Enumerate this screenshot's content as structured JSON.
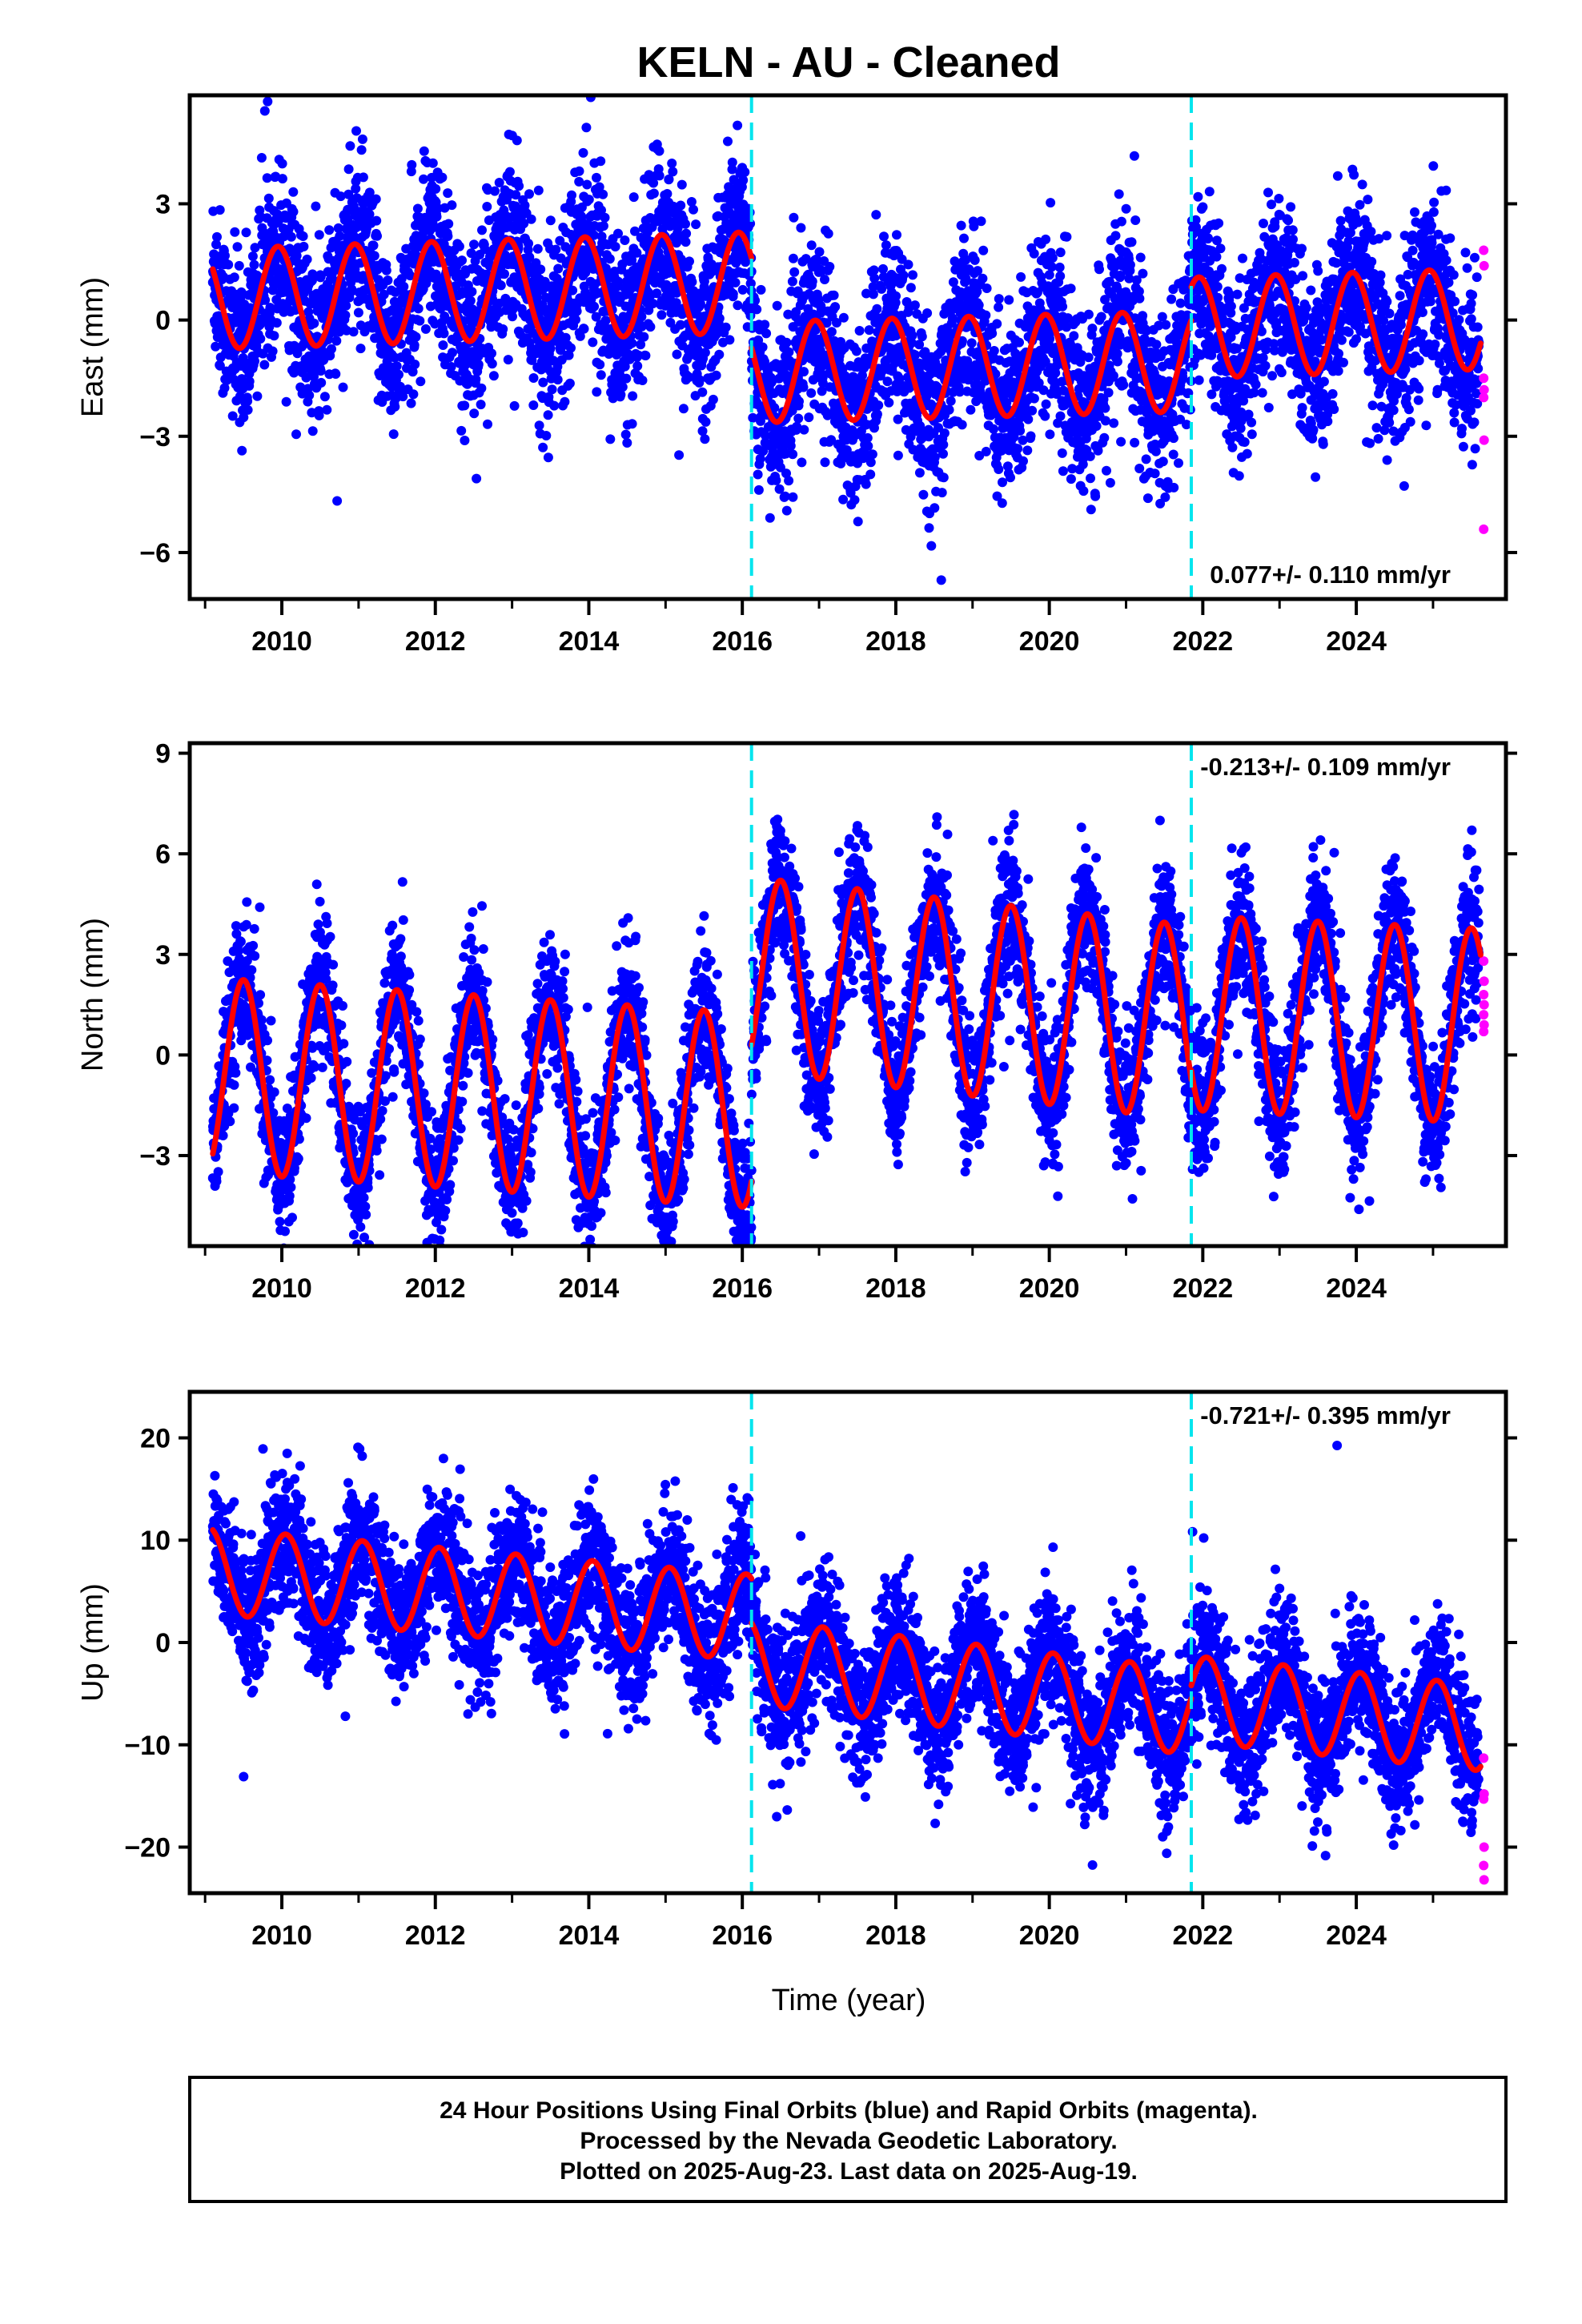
{
  "chart_data": {
    "type": "scatter",
    "title": "KELN  - AU - Cleaned",
    "xlabel": "Time (year)",
    "xlim": [
      2008.8,
      2025.95
    ],
    "x_ticks": [
      2010,
      2012,
      2014,
      2016,
      2018,
      2020,
      2022,
      2024
    ],
    "x_tick_labels": [
      "2010",
      "2012",
      "2014",
      "2016",
      "2018",
      "2020",
      "2022",
      "2024"
    ],
    "vertical_lines": [
      2016.12,
      2021.85
    ],
    "grid": false,
    "colors": {
      "final_orbits": "#0000ff",
      "rapid_orbits": "#ff00ff",
      "model": "#ff0000",
      "breaks": "#00e5ee"
    },
    "panels": [
      {
        "ylabel": "East (mm)",
        "ylim": [
          -7.2,
          5.8
        ],
        "y_ticks": [
          3,
          0,
          -3,
          -6
        ],
        "y_tick_labels": [
          "3",
          "0",
          "−3",
          "−6"
        ],
        "rate_text": "0.077+/- 0.110 mm/yr",
        "rate_position": "bottom-right",
        "model_series": {
          "name": "model",
          "segments": [
            {
              "start": 2009.1,
              "end": 2016.12,
              "offset": 0.55,
              "trend": 0.06,
              "amplitude": 1.3,
              "phase_year": 2009.95
            },
            {
              "start": 2016.12,
              "end": 2021.85,
              "offset": -1.35,
              "trend": 0.05,
              "amplitude": 1.3,
              "phase_year": 2016.95
            },
            {
              "start": 2021.85,
              "end": 2025.62,
              "offset": -0.2,
              "trend": 0.06,
              "amplitude": 1.3,
              "phase_year": 2022.95
            }
          ]
        },
        "scatter_spread": 1.1,
        "rapid_values": [
          1.8,
          1.4,
          -1.5,
          -1.8,
          -2.0,
          -3.1,
          -5.4
        ]
      },
      {
        "ylabel": "North (mm)",
        "ylim": [
          -5.7,
          9.3
        ],
        "y_ticks": [
          9,
          6,
          3,
          0,
          -3
        ],
        "y_tick_labels": [
          "9",
          "6",
          "3",
          "0",
          "−3"
        ],
        "rate_text": "-0.213+/- 0.109 mm/yr",
        "rate_position": "top-right",
        "model_series": {
          "name": "model",
          "segments": [
            {
              "start": 2009.1,
              "end": 2016.12,
              "offset": -0.6,
              "trend": -0.15,
              "amplitude": 2.9,
              "phase_year": 2009.5
            },
            {
              "start": 2016.12,
              "end": 2021.85,
              "offset": 2.4,
              "trend": -0.25,
              "amplitude": 2.9,
              "phase_year": 2016.5
            },
            {
              "start": 2021.85,
              "end": 2025.62,
              "offset": 1.25,
              "trend": -0.1,
              "amplitude": 2.9,
              "phase_year": 2022.5
            }
          ]
        },
        "scatter_spread": 1.0,
        "rapid_values": [
          2.8,
          2.2,
          1.8,
          1.5,
          1.2,
          0.9,
          0.7
        ]
      },
      {
        "ylabel": "Up (mm)",
        "ylim": [
          -24.5,
          24.5
        ],
        "y_ticks": [
          20,
          10,
          0,
          -10,
          -20
        ],
        "y_tick_labels": [
          "20",
          "10",
          "0",
          "−10",
          "−20"
        ],
        "rate_text": "-0.721+/- 0.395 mm/yr",
        "rate_position": "top-right",
        "model_series": {
          "name": "model",
          "segments": [
            {
              "start": 2009.1,
              "end": 2016.12,
              "offset": 7.0,
              "trend": -0.65,
              "amplitude": 4.2,
              "phase_year": 2010.05
            },
            {
              "start": 2016.12,
              "end": 2021.85,
              "offset": -1.9,
              "trend": -0.85,
              "amplitude": 4.2,
              "phase_year": 2017.05
            },
            {
              "start": 2021.85,
              "end": 2025.62,
              "offset": -5.5,
              "trend": -0.75,
              "amplitude": 4.2,
              "phase_year": 2023.05
            }
          ]
        },
        "scatter_spread": 3.3,
        "rapid_values": [
          -11.3,
          -14.8,
          -15.3,
          -20.0,
          -21.8,
          -23.2
        ]
      }
    ],
    "footer": [
      "24 Hour Positions Using Final Orbits (blue) and Rapid Orbits (magenta).",
      "Processed by the Nevada Geodetic Laboratory.",
      "Plotted on 2025-Aug-23. Last data on 2025-Aug-19."
    ]
  }
}
